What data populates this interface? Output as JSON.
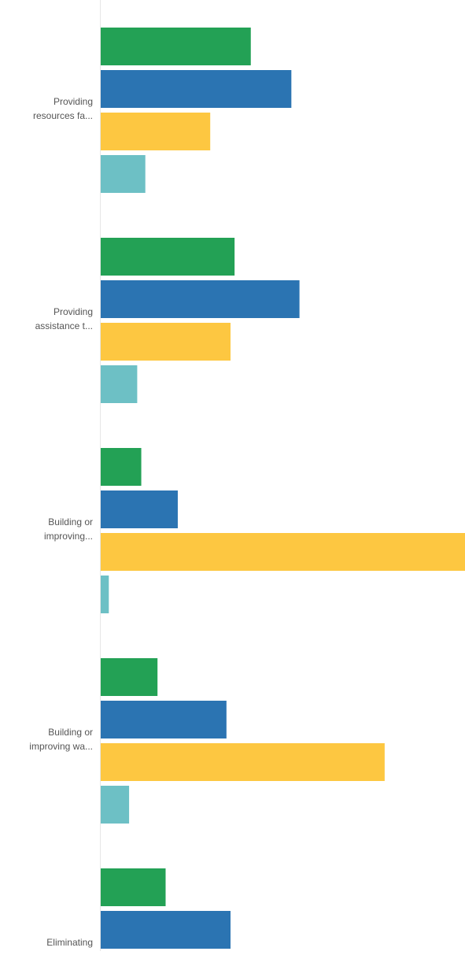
{
  "chart_data": {
    "type": "bar",
    "orientation": "horizontal",
    "categories": [
      [
        "Providing",
        "resources fa..."
      ],
      [
        "Providing",
        "assistance t..."
      ],
      [
        "Building or",
        "improving..."
      ],
      [
        "Building or",
        "improving wa..."
      ],
      [
        "Eliminating",
        ""
      ]
    ],
    "series": [
      {
        "color": "#23a155",
        "values": [
          37,
          33,
          10,
          14,
          16
        ]
      },
      {
        "color": "#2b74b2",
        "values": [
          47,
          49,
          19,
          31,
          32
        ]
      },
      {
        "color": "#fdc741",
        "values": [
          27,
          32,
          90,
          70,
          null
        ]
      },
      {
        "color": "#6dc0c5",
        "values": [
          11,
          9,
          2,
          7,
          null
        ]
      }
    ],
    "xlim": [
      0,
      90
    ],
    "grid": false,
    "legend": "none"
  }
}
